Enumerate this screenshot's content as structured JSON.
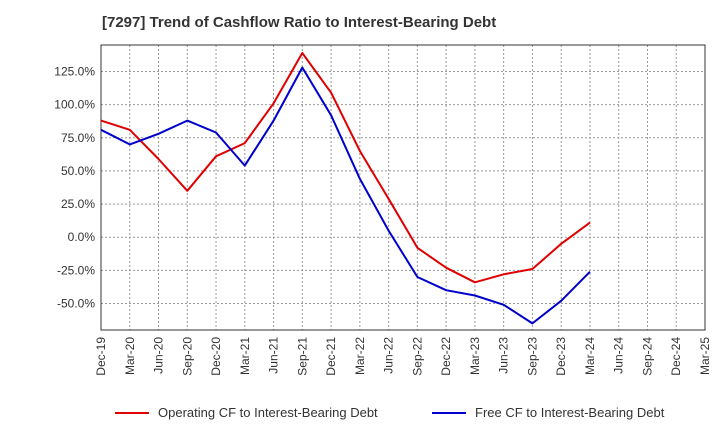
{
  "chart_data": {
    "type": "line",
    "title": "[7297]  Trend of Cashflow Ratio to Interest-Bearing Debt",
    "xlabel": "",
    "ylabel": "",
    "ylim": [
      -70,
      145
    ],
    "yticks": [
      125,
      100,
      75,
      50,
      25,
      0,
      -25,
      -50
    ],
    "ytick_labels": [
      "125.0%",
      "100.0%",
      "75.0%",
      "50.0%",
      "25.0%",
      "0.0%",
      "-25.0%",
      "-50.0%"
    ],
    "categories": [
      "Dec-19",
      "Mar-20",
      "Jun-20",
      "Sep-20",
      "Dec-20",
      "Mar-21",
      "Jun-21",
      "Sep-21",
      "Dec-21",
      "Mar-22",
      "Jun-22",
      "Sep-22",
      "Dec-22",
      "Mar-23",
      "Jun-23",
      "Sep-23",
      "Dec-23",
      "Mar-24",
      "Jun-24",
      "Sep-24",
      "Dec-24",
      "Mar-25"
    ],
    "grid": true,
    "legend_position": "bottom",
    "series": [
      {
        "name": "Operating CF to Interest-Bearing Debt",
        "color": "#e00000",
        "values": [
          88,
          81,
          59,
          35,
          61,
          71,
          101,
          139,
          109,
          65,
          29,
          -8,
          -23,
          -34,
          -28,
          -24,
          -5,
          11,
          null,
          null,
          null,
          null
        ]
      },
      {
        "name": "Free CF to Interest-Bearing Debt",
        "color": "#0000cc",
        "values": [
          81,
          70,
          78,
          88,
          79,
          54,
          88,
          128,
          92,
          44,
          5,
          -30,
          -40,
          -44,
          -51,
          -65,
          -48,
          -26,
          null,
          null,
          null,
          null
        ]
      }
    ]
  }
}
